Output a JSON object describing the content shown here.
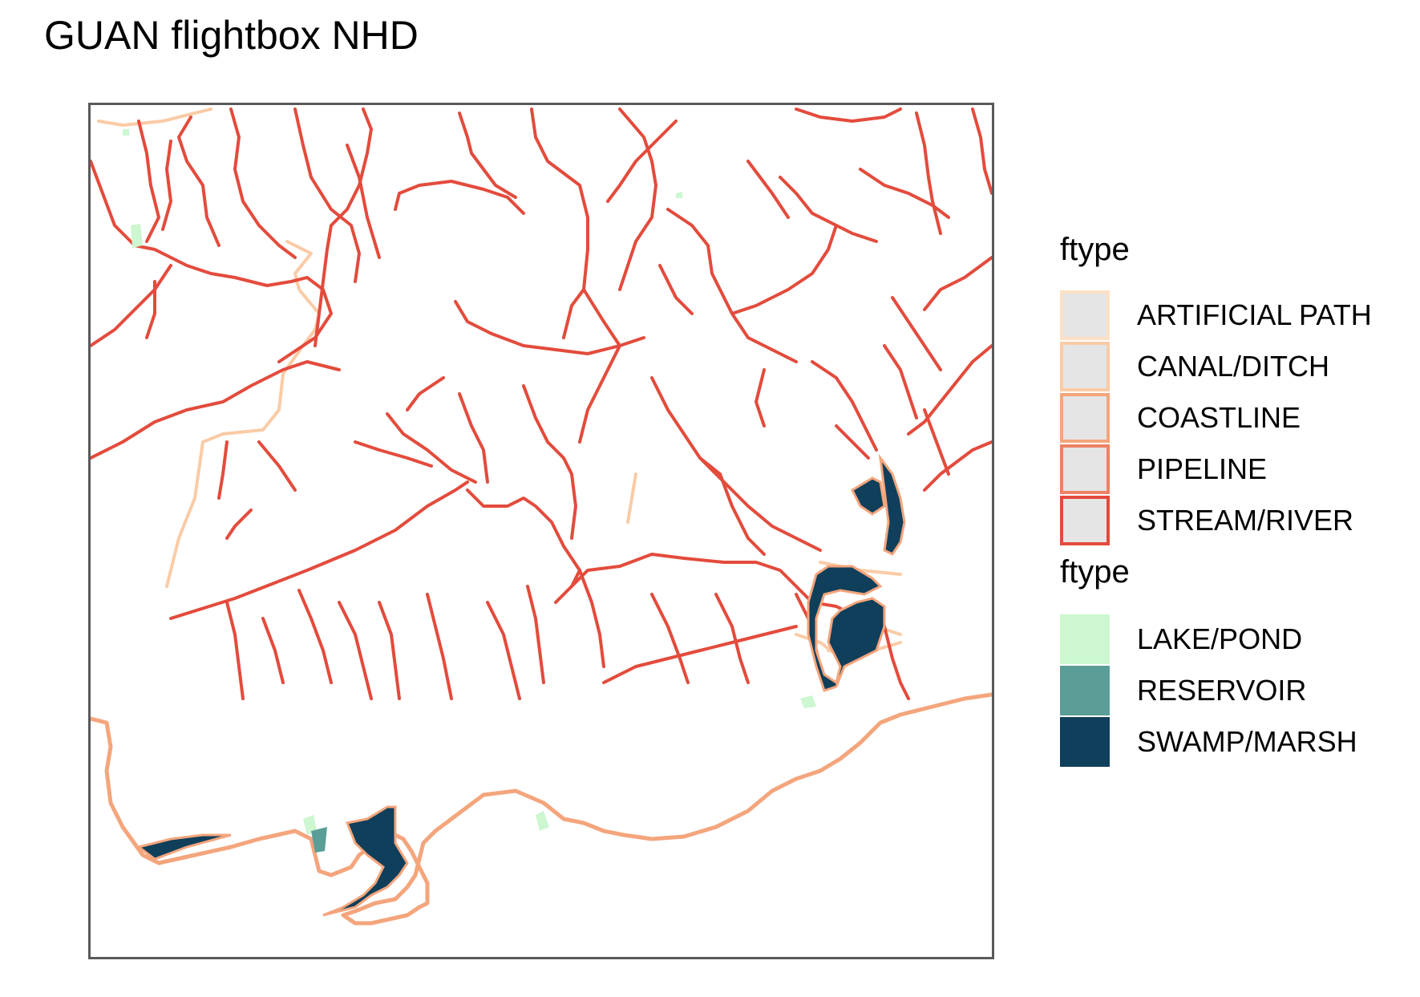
{
  "title": "GUAN flightbox NHD",
  "colors": {
    "artificial_path": "#fde0c5",
    "canal_ditch": "#facba6",
    "coastline": "#f4a57c",
    "pipeline": "#ee8063",
    "stream_river": "#e34b3c",
    "lake_pond": "#ccf7d0",
    "reservoir": "#5a9e97",
    "swamp_marsh": "#0f3f5a"
  },
  "legend": {
    "line_title": "ftype",
    "line_items": [
      {
        "label": "ARTIFICIAL PATH",
        "color": "#fde0c5"
      },
      {
        "label": "CANAL/DITCH",
        "color": "#facba6"
      },
      {
        "label": "COASTLINE",
        "color": "#f4a57c"
      },
      {
        "label": "PIPELINE",
        "color": "#ee8063"
      },
      {
        "label": "STREAM/RIVER",
        "color": "#e34b3c"
      }
    ],
    "fill_title": "ftype",
    "fill_items": [
      {
        "label": "LAKE/POND",
        "color": "#ccf7d0"
      },
      {
        "label": "RESERVOIR",
        "color": "#5a9e97"
      },
      {
        "label": "SWAMP/MARSH",
        "color": "#0f3f5a"
      }
    ]
  }
}
